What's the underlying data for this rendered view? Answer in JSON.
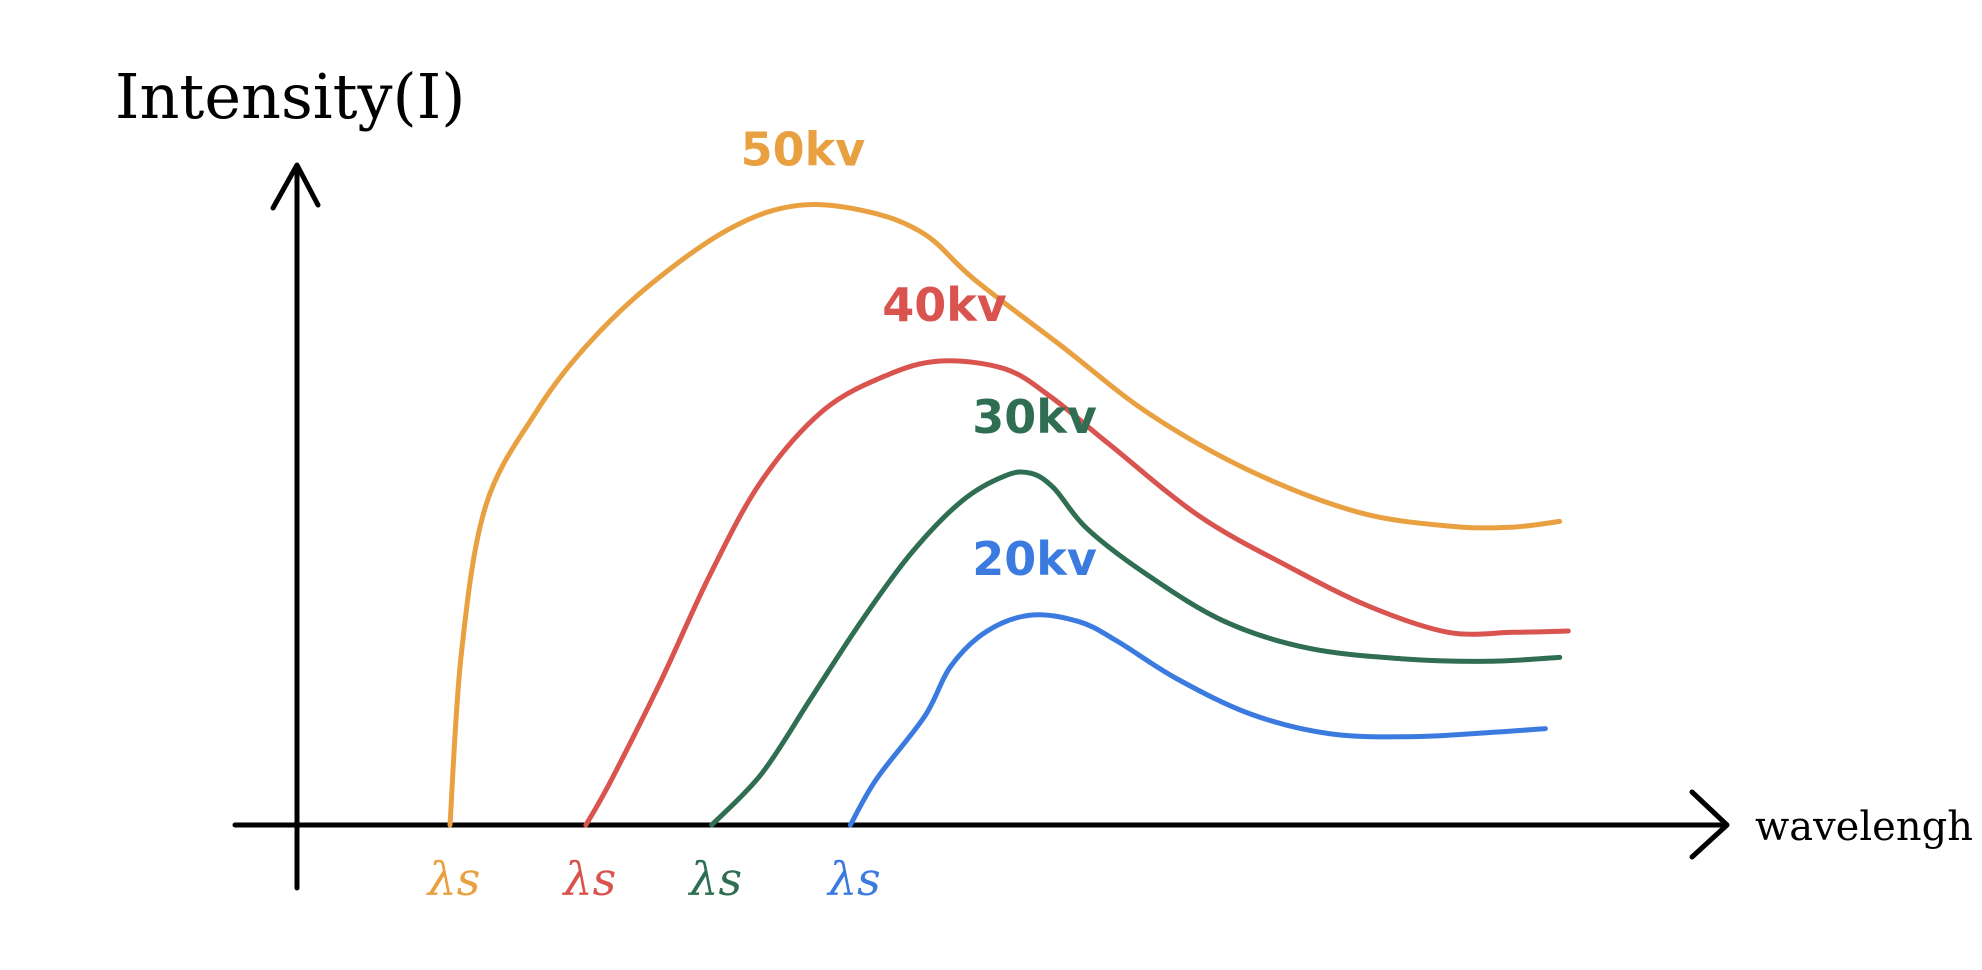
{
  "chart_data": {
    "type": "line",
    "title": "",
    "ylabel": "Intensity(I)",
    "xlabel": "wavelengh",
    "xlim": [
      0,
      100
    ],
    "ylim": [
      0,
      100
    ],
    "grid": false,
    "legend": "inline labels near curve peaks",
    "series": [
      {
        "name": "50kv",
        "color": "#E8A040",
        "cutoff_label": "λs",
        "x": [
          10.7,
          11.5,
          13.2,
          16.7,
          20.2,
          24.6,
          30.3,
          35.1,
          40.0,
          43.9,
          47.4,
          53.5,
          59.6,
          66.7,
          74.2,
          80.5,
          84.8,
          88.3
        ],
        "y": [
          0,
          26.2,
          48.4,
          62.5,
          72.5,
          81.7,
          90.4,
          93.9,
          92.9,
          89.5,
          82.6,
          72.5,
          62.3,
          53.6,
          47.4,
          45.3,
          45.1,
          46.0
        ]
      },
      {
        "name": "40kv",
        "color": "#D9534F",
        "cutoff_label": "λs",
        "x": [
          20.2,
          21.9,
          25.4,
          28.9,
          32.5,
          36.8,
          41.2,
          45.0,
          49.5,
          52.7,
          56.8,
          63.1,
          69.3,
          75.0,
          80.5,
          85.1,
          88.9
        ],
        "y": [
          0,
          6.5,
          21.6,
          38.0,
          52.2,
          62.8,
          68.1,
          70.3,
          69.1,
          64.9,
          57.7,
          46.8,
          39.2,
          33.1,
          29.2,
          29.2,
          29.4
        ]
      },
      {
        "name": "30kv",
        "color": "#2F6E52",
        "cutoff_label": "λs",
        "x": [
          29.0,
          32.5,
          36.0,
          39.5,
          43.0,
          46.5,
          49.5,
          51.3,
          52.9,
          55.3,
          59.6,
          64.9,
          70.7,
          77.2,
          83.3,
          88.3
        ],
        "y": [
          0,
          7.8,
          19.4,
          31.0,
          41.3,
          49.1,
          52.9,
          53.3,
          51.1,
          44.8,
          37.7,
          30.8,
          26.8,
          25.2,
          24.8,
          25.4
        ]
      },
      {
        "name": "20kv",
        "color": "#3B7BE0",
        "cutoff_label": "λs",
        "x": [
          38.7,
          40.5,
          43.9,
          45.7,
          48.2,
          51.3,
          54.7,
          57.4,
          61.5,
          66.7,
          72.3,
          78.1,
          83.3,
          87.3
        ],
        "y": [
          0,
          6.9,
          16.5,
          24.0,
          29.3,
          31.8,
          30.8,
          27.8,
          22.2,
          16.8,
          13.8,
          13.4,
          14.0,
          14.6
        ]
      }
    ]
  }
}
